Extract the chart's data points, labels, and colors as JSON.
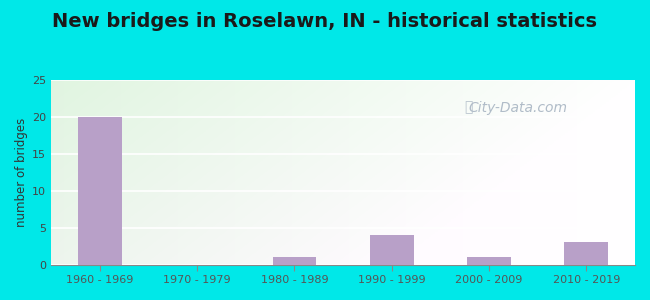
{
  "title": "New bridges in Roselawn, IN - historical statistics",
  "categories": [
    "1960 - 1969",
    "1970 - 1979",
    "1980 - 1989",
    "1990 - 1999",
    "2000 - 2009",
    "2010 - 2019"
  ],
  "values": [
    20,
    0,
    1,
    4,
    1,
    3
  ],
  "bar_color": "#b8a0c8",
  "ylabel": "number of bridges",
  "ylim": [
    0,
    25
  ],
  "yticks": [
    0,
    5,
    10,
    15,
    20,
    25
  ],
  "outer_bg": "#00e8e8",
  "title_fontsize": 14,
  "watermark_text": "City-Data.com",
  "watermark_color": "#b0bcc8",
  "grid_color": "#d8e8d0",
  "plot_bg_colors": [
    "#e8f5e0",
    "#f8fffc"
  ],
  "bar_width": 0.45
}
